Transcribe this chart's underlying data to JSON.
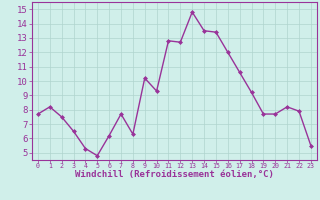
{
  "x": [
    0,
    1,
    2,
    3,
    4,
    5,
    6,
    7,
    8,
    9,
    10,
    11,
    12,
    13,
    14,
    15,
    16,
    17,
    18,
    19,
    20,
    21,
    22,
    23
  ],
  "y": [
    7.7,
    8.2,
    7.5,
    6.5,
    5.3,
    4.8,
    6.2,
    7.7,
    6.3,
    10.2,
    9.3,
    12.8,
    12.7,
    14.8,
    13.5,
    13.4,
    12.0,
    10.6,
    9.2,
    7.7,
    7.7,
    8.2,
    7.9,
    5.5
  ],
  "line_color": "#993399",
  "marker": "D",
  "marker_size": 2.0,
  "line_width": 1.0,
  "bg_color": "#d0efea",
  "grid_color": "#b0d4ce",
  "xlabel": "Windchill (Refroidissement éolien,°C)",
  "xlabel_color": "#993399",
  "xlabel_fontsize": 6.5,
  "tick_color": "#993399",
  "ytick_fontsize": 6.5,
  "xtick_fontsize": 5.0,
  "ylim": [
    4.5,
    15.5
  ],
  "yticks": [
    5,
    6,
    7,
    8,
    9,
    10,
    11,
    12,
    13,
    14,
    15
  ],
  "xticks": [
    0,
    1,
    2,
    3,
    4,
    5,
    6,
    7,
    8,
    9,
    10,
    11,
    12,
    13,
    14,
    15,
    16,
    17,
    18,
    19,
    20,
    21,
    22,
    23
  ],
  "frame_color": "#993399"
}
